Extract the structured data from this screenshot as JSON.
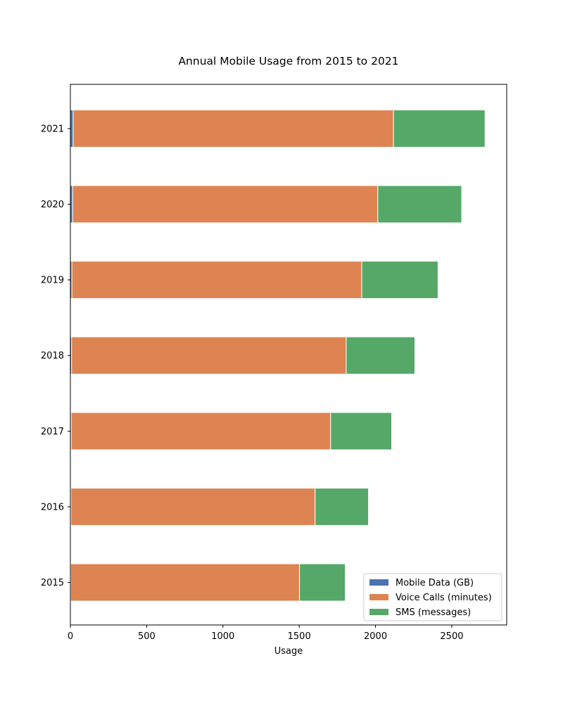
{
  "chart_data": {
    "type": "bar",
    "orientation": "horizontal",
    "stacked": true,
    "title": "Annual Mobile Usage from 2015 to 2021",
    "xlabel": "Usage",
    "ylabel": "",
    "categories": [
      "2015",
      "2016",
      "2017",
      "2018",
      "2019",
      "2020",
      "2021"
    ],
    "series": [
      {
        "name": "Mobile Data (GB)",
        "color": "#4c72b0",
        "values": [
          2,
          4,
          6,
          8,
          10,
          15,
          18
        ]
      },
      {
        "name": "Voice Calls (minutes)",
        "color": "#dd8452",
        "values": [
          1500,
          1600,
          1700,
          1800,
          1900,
          2000,
          2100
        ]
      },
      {
        "name": "SMS (messages)",
        "color": "#55a868",
        "values": [
          300,
          350,
          400,
          450,
          500,
          550,
          600
        ]
      }
    ],
    "xlim": [
      0,
      2860
    ],
    "xticks": [
      0,
      500,
      1000,
      1500,
      2000,
      2500
    ],
    "grid": false,
    "legend_position": "lower-right"
  }
}
